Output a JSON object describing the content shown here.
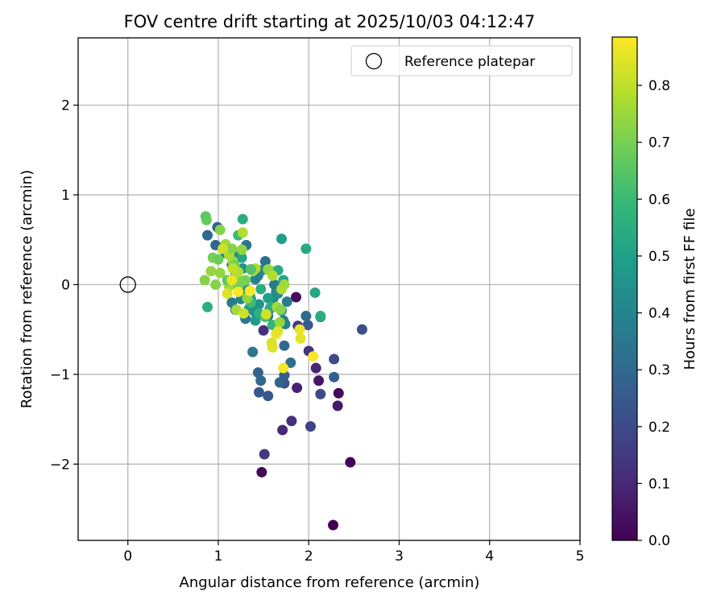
{
  "chart_data": {
    "type": "scatter",
    "title": "FOV centre drift starting at 2025/10/03 04:12:47",
    "xlabel": "Angular distance from reference (arcmin)",
    "ylabel": "Rotation from reference (arcmin)",
    "xlim": [
      -0.55,
      5.0
    ],
    "ylim": [
      -2.85,
      2.75
    ],
    "xticks": [
      0,
      1,
      2,
      3,
      4,
      5
    ],
    "xtick_labels": [
      "0",
      "1",
      "2",
      "3",
      "4",
      "5"
    ],
    "yticks": [
      2,
      1,
      0,
      -1,
      -2
    ],
    "ytick_labels": [
      "2",
      "1",
      "0",
      "−1",
      "−2"
    ],
    "grid": true,
    "legend": {
      "position": "top-right",
      "entries": [
        "Reference platepar"
      ]
    },
    "reference_point": {
      "x": 0,
      "y": 0,
      "label": "Reference platepar"
    },
    "colorbar": {
      "label": "Hours from first FF file",
      "range": [
        0.0,
        0.885
      ],
      "ticks": [
        0.0,
        0.1,
        0.2,
        0.3,
        0.4,
        0.5,
        0.6,
        0.7,
        0.8
      ],
      "tick_labels": [
        "0.0",
        "0.1",
        "0.2",
        "0.3",
        "0.4",
        "0.5",
        "0.6",
        "0.7",
        "0.8"
      ],
      "colormap": [
        "#440154",
        "#482878",
        "#3e4989",
        "#31688e",
        "#26828e",
        "#1f9e89",
        "#35b779",
        "#6ece58",
        "#b5de2b",
        "#fde725"
      ]
    },
    "series": [
      {
        "name": "FOV centre drift",
        "points": [
          [
            2.27,
            -2.68,
            0.0
          ],
          [
            2.46,
            -1.98,
            0.01
          ],
          [
            1.48,
            -2.09,
            0.02
          ],
          [
            2.33,
            -1.21,
            0.02
          ],
          [
            1.86,
            -0.14,
            0.03
          ],
          [
            2.11,
            -1.07,
            0.05
          ],
          [
            2.32,
            -1.35,
            0.06
          ],
          [
            1.87,
            -1.15,
            0.08
          ],
          [
            1.71,
            -1.62,
            0.1
          ],
          [
            1.81,
            -1.52,
            0.12
          ],
          [
            1.51,
            -1.89,
            0.14
          ],
          [
            2.08,
            -0.93,
            0.09
          ],
          [
            1.5,
            -0.51,
            0.12
          ],
          [
            1.88,
            -0.46,
            0.14
          ],
          [
            2.0,
            -0.74,
            0.13
          ],
          [
            2.02,
            -1.58,
            0.18
          ],
          [
            2.28,
            -0.83,
            0.2
          ],
          [
            2.59,
            -0.5,
            0.22
          ],
          [
            2.13,
            -1.22,
            0.2
          ],
          [
            1.73,
            -1.1,
            0.22
          ],
          [
            1.45,
            -1.2,
            0.25
          ],
          [
            1.55,
            -1.24,
            0.24
          ],
          [
            1.44,
            -0.98,
            0.28
          ],
          [
            1.47,
            -1.07,
            0.3
          ],
          [
            1.73,
            -1.01,
            0.26
          ],
          [
            1.68,
            -1.09,
            0.28
          ],
          [
            1.99,
            -0.45,
            0.25
          ],
          [
            1.97,
            -0.35,
            0.3
          ],
          [
            2.28,
            -1.03,
            0.27
          ],
          [
            1.8,
            -0.87,
            0.32
          ],
          [
            1.73,
            -0.68,
            0.3
          ],
          [
            2.13,
            -0.36,
            0.33
          ],
          [
            1.38,
            -0.75,
            0.35
          ],
          [
            0.88,
            0.55,
            0.3
          ],
          [
            0.99,
            0.64,
            0.28
          ],
          [
            0.97,
            0.44,
            0.3
          ],
          [
            1.31,
            0.44,
            0.35
          ],
          [
            1.52,
            0.26,
            0.32
          ],
          [
            1.36,
            0.17,
            0.33
          ],
          [
            1.08,
            0.35,
            0.38
          ],
          [
            1.15,
            0.22,
            0.4
          ],
          [
            1.21,
            0.32,
            0.42
          ],
          [
            1.27,
            0.18,
            0.45
          ],
          [
            1.41,
            0.06,
            0.4
          ],
          [
            1.64,
            -0.08,
            0.42
          ],
          [
            1.7,
            -0.29,
            0.38
          ],
          [
            1.57,
            -0.27,
            0.36
          ],
          [
            1.55,
            -0.35,
            0.34
          ],
          [
            1.3,
            -0.38,
            0.35
          ],
          [
            1.19,
            -0.28,
            0.38
          ],
          [
            1.15,
            -0.2,
            0.36
          ],
          [
            1.25,
            -0.16,
            0.4
          ],
          [
            1.45,
            -0.22,
            0.46
          ],
          [
            1.36,
            -0.16,
            0.43
          ],
          [
            1.61,
            -0.15,
            0.41
          ],
          [
            1.62,
            0.0,
            0.36
          ],
          [
            1.44,
            0.1,
            0.38
          ],
          [
            1.48,
            0.16,
            0.4
          ],
          [
            1.66,
            -0.1,
            0.44
          ],
          [
            1.74,
            -0.44,
            0.4
          ],
          [
            1.72,
            -0.4,
            0.38
          ],
          [
            1.76,
            -0.19,
            0.37
          ],
          [
            1.4,
            -0.3,
            0.44
          ],
          [
            1.34,
            -0.27,
            0.46
          ],
          [
            1.7,
            0.51,
            0.5
          ],
          [
            1.97,
            0.4,
            0.53
          ],
          [
            2.07,
            -0.09,
            0.52
          ],
          [
            2.13,
            -0.35,
            0.55
          ],
          [
            0.88,
            -0.25,
            0.55
          ],
          [
            1.72,
            0.05,
            0.52
          ],
          [
            1.66,
            0.16,
            0.54
          ],
          [
            1.41,
            -0.4,
            0.48
          ],
          [
            1.55,
            -0.15,
            0.5
          ],
          [
            1.35,
            -0.12,
            0.52
          ],
          [
            1.27,
            0.73,
            0.55
          ],
          [
            1.47,
            -0.05,
            0.55
          ],
          [
            1.3,
            -0.05,
            0.48
          ],
          [
            1.19,
            0.12,
            0.5
          ],
          [
            1.26,
            0.3,
            0.52
          ],
          [
            1.58,
            -0.25,
            0.55
          ],
          [
            1.6,
            -0.45,
            0.58
          ],
          [
            1.45,
            -0.32,
            0.56
          ],
          [
            1.36,
            -0.2,
            0.6
          ],
          [
            1.58,
            0.15,
            0.58
          ],
          [
            1.22,
            0.55,
            0.6
          ],
          [
            1.52,
            -0.36,
            0.62
          ],
          [
            0.86,
            0.76,
            0.66
          ],
          [
            0.87,
            0.72,
            0.67
          ],
          [
            0.85,
            0.05,
            0.72
          ],
          [
            0.92,
            0.15,
            0.74
          ],
          [
            0.94,
            0.3,
            0.7
          ],
          [
            0.97,
            0.0,
            0.72
          ],
          [
            1.0,
            0.28,
            0.68
          ],
          [
            1.02,
            0.61,
            0.72
          ],
          [
            1.02,
            0.13,
            0.74
          ],
          [
            1.08,
            0.45,
            0.76
          ],
          [
            1.12,
            0.33,
            0.78
          ],
          [
            1.15,
            0.4,
            0.72
          ],
          [
            1.16,
            0.26,
            0.76
          ],
          [
            1.18,
            0.22,
            0.7
          ],
          [
            1.2,
            0.1,
            0.74
          ],
          [
            1.22,
            0.14,
            0.78
          ],
          [
            1.26,
            0.39,
            0.74
          ],
          [
            1.27,
            0.58,
            0.78
          ],
          [
            1.25,
            0.03,
            0.72
          ],
          [
            1.12,
            -0.02,
            0.76
          ],
          [
            1.3,
            0.05,
            0.7
          ],
          [
            1.32,
            -0.15,
            0.74
          ],
          [
            1.38,
            0.15,
            0.76
          ],
          [
            1.41,
            0.18,
            0.78
          ],
          [
            1.55,
            0.17,
            0.74
          ],
          [
            1.6,
            0.1,
            0.78
          ],
          [
            1.65,
            -0.25,
            0.76
          ],
          [
            1.69,
            -0.28,
            0.72
          ],
          [
            1.68,
            -0.42,
            0.74
          ],
          [
            1.7,
            -0.05,
            0.78
          ],
          [
            1.73,
            0.0,
            0.76
          ],
          [
            1.2,
            -0.28,
            0.76
          ],
          [
            1.1,
            0.05,
            0.66
          ],
          [
            1.36,
            0.17,
            0.64
          ],
          [
            1.22,
            -0.02,
            0.7
          ],
          [
            1.16,
            0.18,
            0.8
          ],
          [
            1.05,
            0.4,
            0.82
          ],
          [
            1.1,
            -0.1,
            0.84
          ],
          [
            1.28,
            -0.32,
            0.82
          ],
          [
            1.53,
            -0.33,
            0.82
          ],
          [
            1.59,
            -0.65,
            0.83
          ],
          [
            1.6,
            -0.7,
            0.84
          ],
          [
            1.64,
            -0.55,
            0.86
          ],
          [
            1.66,
            -0.52,
            0.85
          ],
          [
            1.72,
            -0.93,
            0.87
          ],
          [
            1.9,
            -0.5,
            0.86
          ],
          [
            1.91,
            -0.6,
            0.85
          ],
          [
            2.05,
            -0.8,
            0.88
          ],
          [
            1.22,
            -0.08,
            0.88
          ],
          [
            1.35,
            -0.07,
            0.88
          ],
          [
            1.15,
            0.05,
            0.86
          ]
        ]
      }
    ]
  }
}
